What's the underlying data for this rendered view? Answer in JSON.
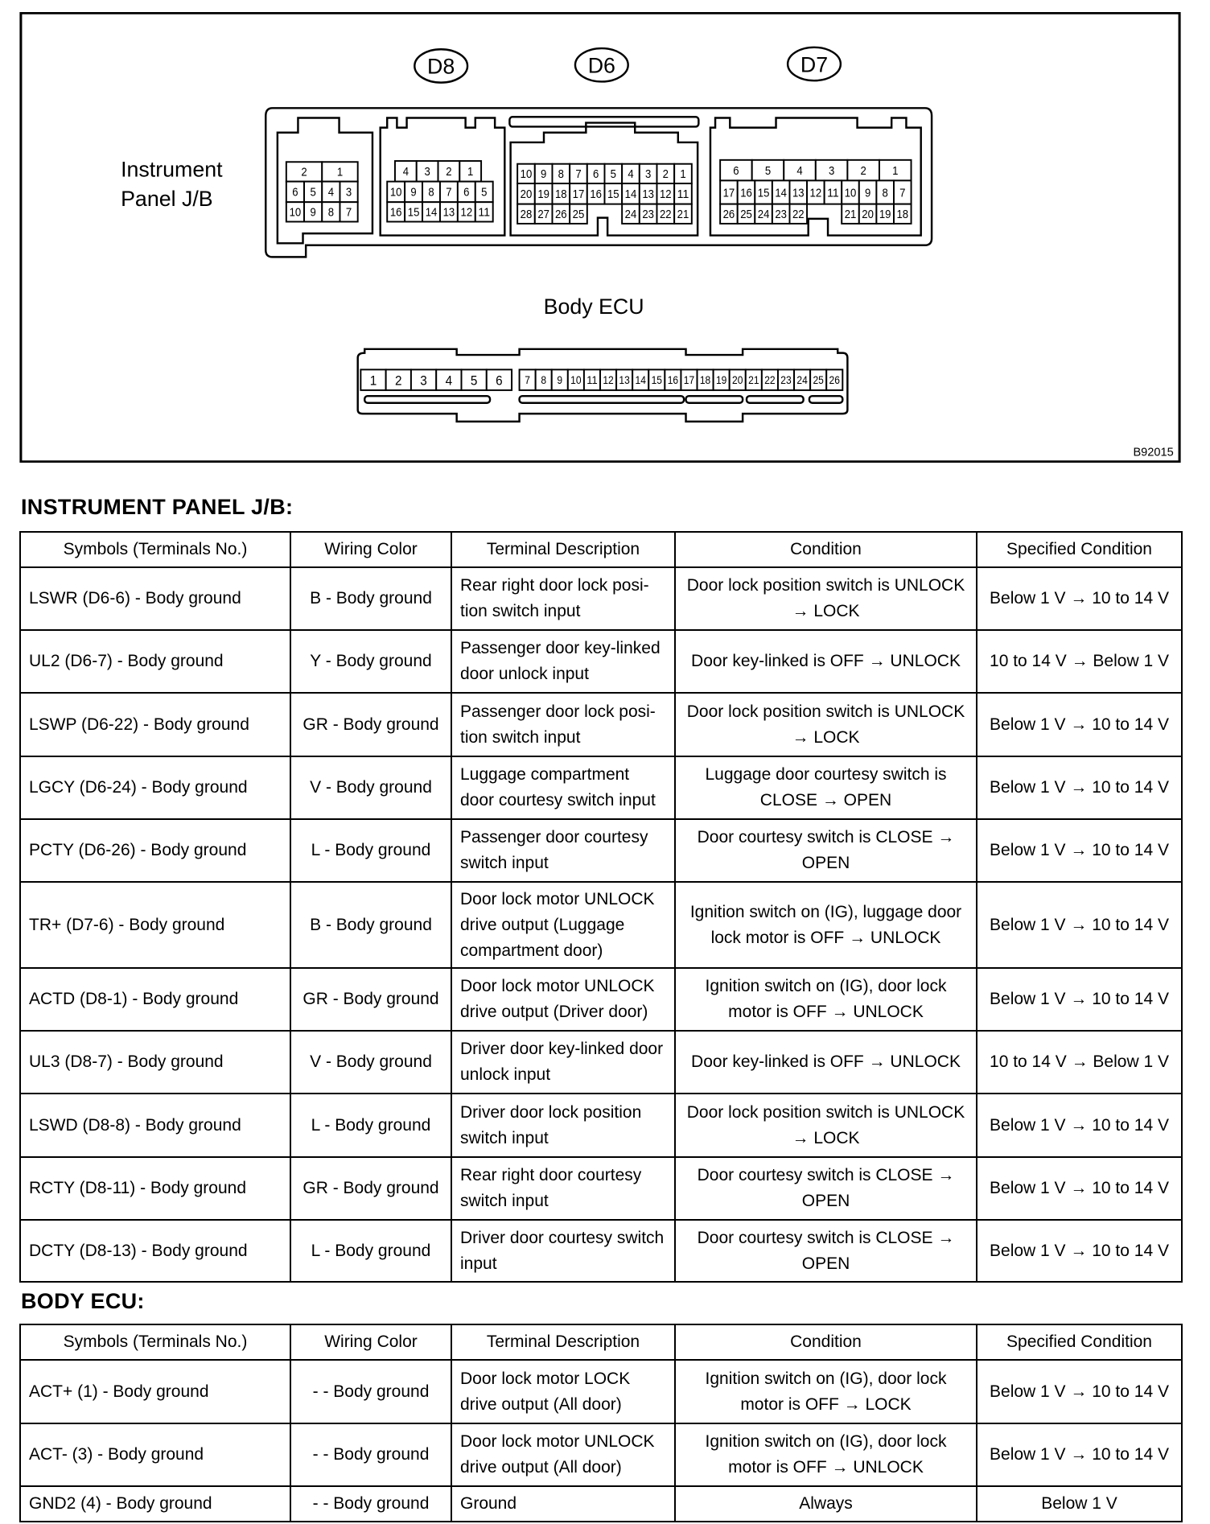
{
  "diagram": {
    "connector_labels": [
      "D8",
      "D6",
      "D7"
    ],
    "jb_label": [
      "Instrument",
      "Panel J/B"
    ],
    "ecu_label": "Body ECU",
    "figure_code": "B92015",
    "jb_left_rows": [
      [
        "2",
        "1"
      ],
      [
        "6",
        "5",
        "4",
        "3"
      ],
      [
        "10",
        "9",
        "8",
        "7"
      ]
    ],
    "d8_rows": [
      [
        "4",
        "3",
        "2",
        "1"
      ],
      [
        "10",
        "9",
        "8",
        "7",
        "6",
        "5"
      ],
      [
        "16",
        "15",
        "14",
        "13",
        "12",
        "11"
      ]
    ],
    "d6_rows": [
      [
        "10",
        "9",
        "8",
        "7",
        "6",
        "5",
        "4",
        "3",
        "2",
        "1"
      ],
      [
        "20",
        "19",
        "18",
        "17",
        "16",
        "15",
        "14",
        "13",
        "12",
        "11"
      ],
      [
        "28",
        "27",
        "26",
        "25",
        null,
        null,
        "24",
        "23",
        "22",
        "21"
      ]
    ],
    "d7_rows": [
      [
        "6",
        "5",
        "4",
        "3",
        "2",
        "1"
      ],
      [
        "17",
        "16",
        "15",
        "14",
        "13",
        "12",
        "11",
        "10",
        "9",
        "8",
        "7"
      ],
      [
        "26",
        "25",
        "24",
        "23",
        "22",
        null,
        null,
        "21",
        "20",
        "19",
        "18"
      ]
    ],
    "ecu_big": [
      "1",
      "2",
      "3",
      "4",
      "5",
      "6"
    ],
    "ecu_small": [
      "7",
      "8",
      "9",
      "10",
      "11",
      "12",
      "13",
      "14",
      "15",
      "16",
      "17",
      "18",
      "19",
      "20",
      "21",
      "22",
      "23",
      "24",
      "25",
      "26"
    ]
  },
  "jb_section": {
    "title": "INSTRUMENT PANEL J/B:",
    "headers": [
      "Symbols (Terminals No.)",
      "Wiring Color",
      "Terminal Description",
      "Condition",
      "Specified Condition"
    ],
    "rows": [
      [
        "LSWR (D6-6) - Body ground",
        "B - Body ground",
        "Rear right door lock posi-tion switch input",
        "Door lock position switch is UNLOCK → LOCK",
        "Below 1 V → 10 to 14 V"
      ],
      [
        "UL2 (D6-7) - Body ground",
        "Y - Body ground",
        "Passenger door key-linked door unlock input",
        "Door key-linked is OFF → UNLOCK",
        "10 to 14 V → Below 1 V"
      ],
      [
        "LSWP (D6-22) - Body ground",
        "GR - Body ground",
        "Passenger door lock posi-tion switch input",
        "Door lock position switch is UNLOCK → LOCK",
        "Below 1 V → 10 to 14 V"
      ],
      [
        "LGCY (D6-24) - Body ground",
        "V - Body ground",
        "Luggage compartment door courtesy switch input",
        "Luggage door courtesy switch is CLOSE → OPEN",
        "Below 1 V → 10 to 14 V"
      ],
      [
        "PCTY (D6-26) - Body ground",
        "L - Body ground",
        "Passenger door courtesy switch input",
        "Door courtesy switch is CLOSE → OPEN",
        "Below 1 V → 10 to 14 V"
      ],
      [
        "TR+ (D7-6) - Body ground",
        "B - Body ground",
        "Door lock motor UNLOCK drive output (Luggage compartment door)",
        "Ignition switch on (IG), luggage door lock motor is OFF → UNLOCK",
        "Below 1 V → 10 to 14 V"
      ],
      [
        "ACTD (D8-1) - Body ground",
        "GR - Body ground",
        "Door lock motor UNLOCK drive output (Driver door)",
        "Ignition switch on (IG), door lock motor is OFF → UNLOCK",
        "Below 1 V → 10 to 14 V"
      ],
      [
        "UL3 (D8-7) - Body ground",
        "V - Body ground",
        "Driver door key-linked door unlock input",
        "Door key-linked is OFF → UNLOCK",
        "10 to 14 V → Below 1 V"
      ],
      [
        "LSWD (D8-8) - Body ground",
        "L - Body ground",
        "Driver door lock position switch input",
        "Door lock position switch is UNLOCK → LOCK",
        "Below 1 V → 10 to 14 V"
      ],
      [
        "RCTY (D8-11) - Body ground",
        "GR - Body ground",
        "Rear right door courtesy switch input",
        "Door courtesy switch is CLOSE → OPEN",
        "Below 1 V → 10 to 14 V"
      ],
      [
        "DCTY (D8-13) - Body ground",
        "L - Body ground",
        "Driver door courtesy switch input",
        "Door courtesy switch is CLOSE → OPEN",
        "Below 1 V → 10 to 14 V"
      ]
    ]
  },
  "ecu_section": {
    "title": "BODY ECU:",
    "headers": [
      "Symbols (Terminals No.)",
      "Wiring Color",
      "Terminal Description",
      "Condition",
      "Specified Condition"
    ],
    "rows": [
      [
        "ACT+ (1) - Body ground",
        "- - Body ground",
        "Door lock motor LOCK drive output (All door)",
        "Ignition switch on (IG), door lock motor is OFF → LOCK",
        "Below 1 V → 10 to 14 V"
      ],
      [
        "ACT- (3) - Body ground",
        "- - Body ground",
        "Door lock motor UNLOCK drive output (All door)",
        "Ignition switch on (IG), door lock motor is OFF → UNLOCK",
        "Below 1 V → 10 to 14 V"
      ],
      [
        "GND2 (4) - Body ground",
        "- - Body ground",
        "Ground",
        "Always",
        "Below 1 V"
      ]
    ]
  }
}
